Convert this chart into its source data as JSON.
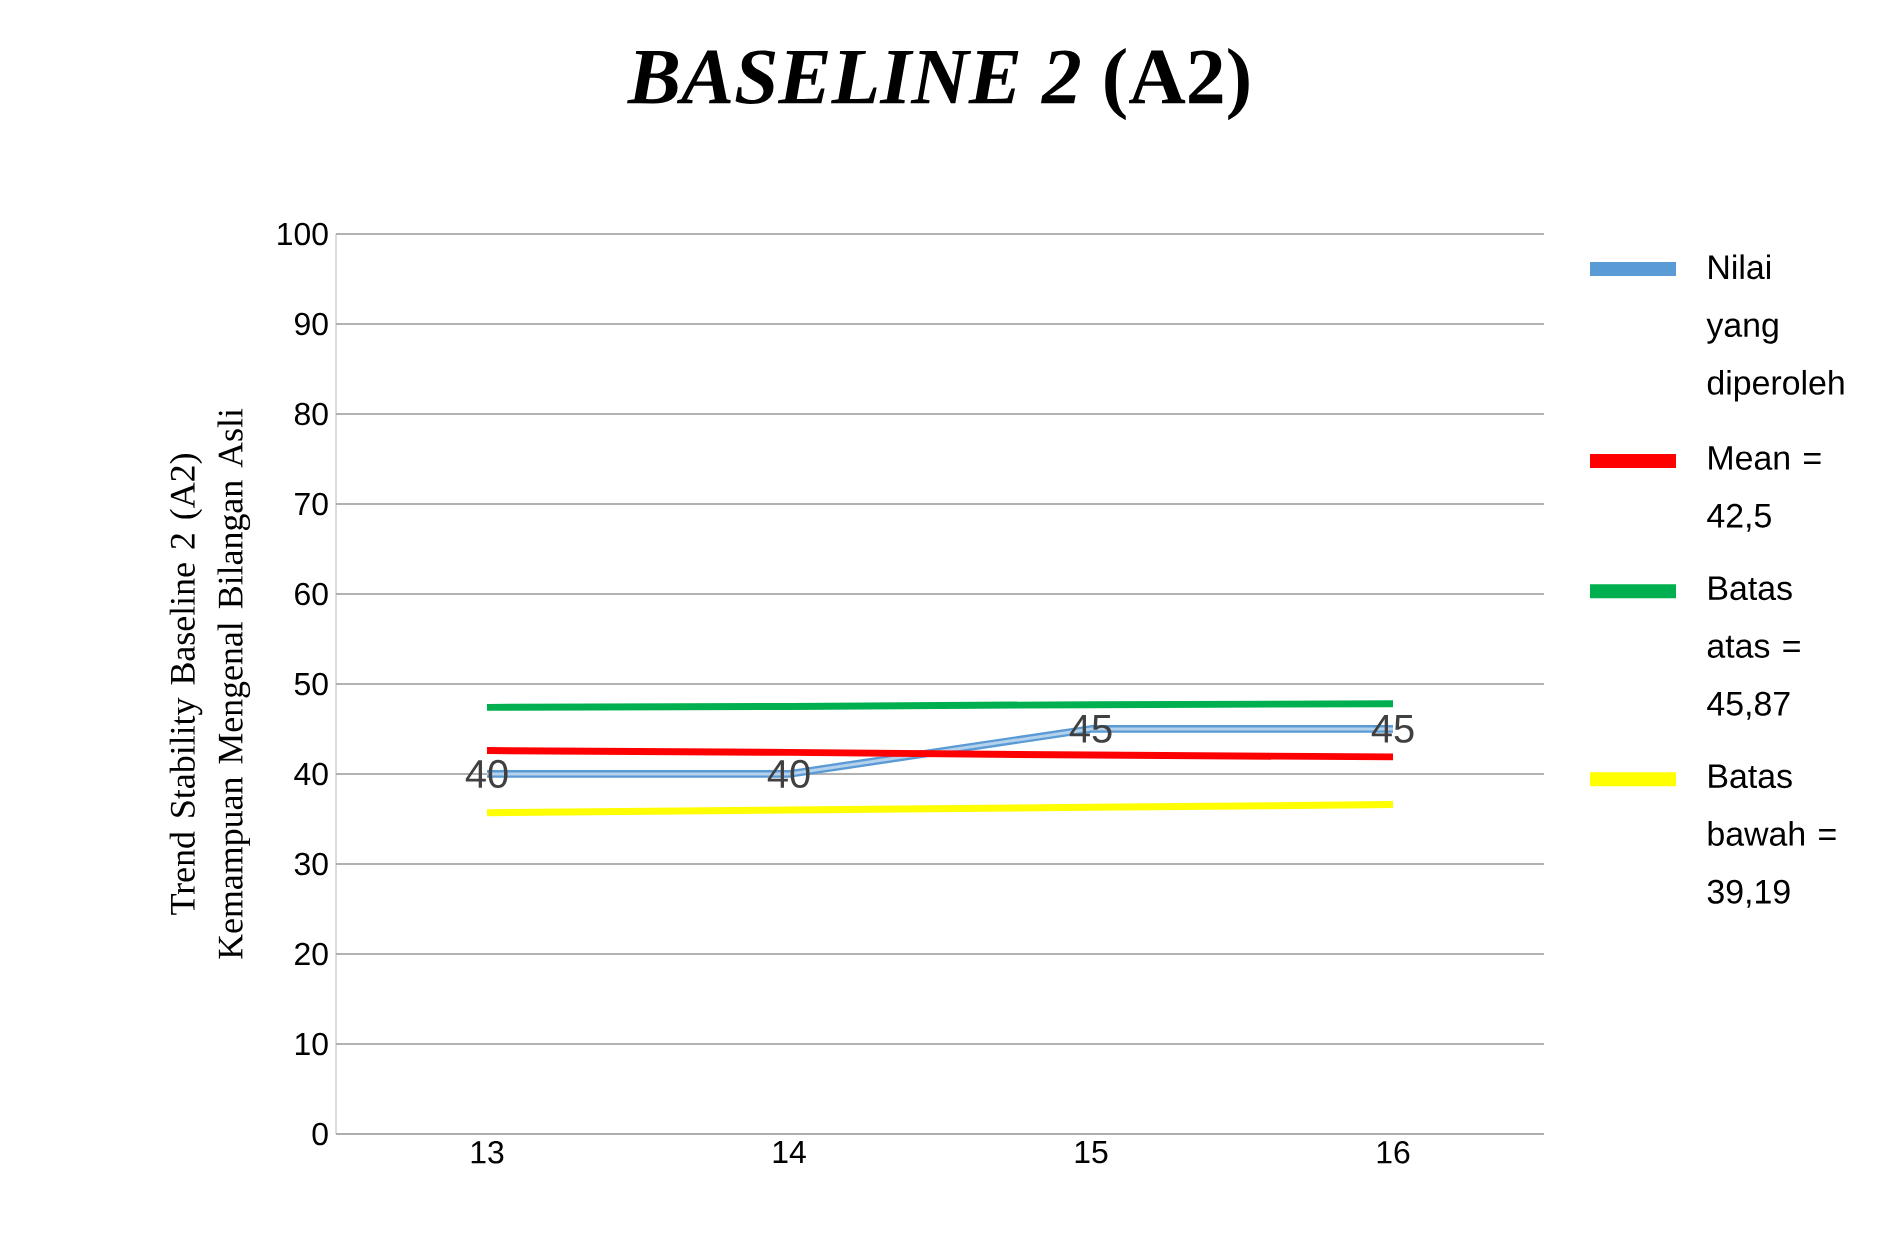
{
  "chart_data": {
    "type": "line",
    "title": "*BASELINE 2* (A2)",
    "ylabel": "Trend Stability Baseline 2 (A2) Kemampuan Mengenal Bilangan Asli",
    "categories": [
      "13",
      "14",
      "15",
      "16"
    ],
    "series": [
      {
        "name": "Nilai yang diperoleh",
        "color": "#5b9bd5",
        "values": [
          40,
          40,
          45,
          45
        ],
        "value_labels": [
          "40",
          "40",
          "45",
          "45"
        ]
      },
      {
        "name": "Mean = 42,5",
        "color": "#ff0000",
        "values": [
          42.6,
          42.4,
          42.1,
          41.9
        ]
      },
      {
        "name": "Batas atas = 45,87",
        "color": "#00b050",
        "values": [
          47.4,
          47.5,
          47.7,
          47.8
        ]
      },
      {
        "name": "Batas bawah = 39,19",
        "color": "#ffff00",
        "values": [
          35.7,
          36.0,
          36.3,
          36.6
        ]
      }
    ],
    "ylim": [
      0,
      100
    ],
    "yticks": [
      0,
      10,
      20,
      30,
      40,
      50,
      60,
      70,
      80,
      90,
      100
    ],
    "grid": "y",
    "legend": "right",
    "marker": "none"
  }
}
